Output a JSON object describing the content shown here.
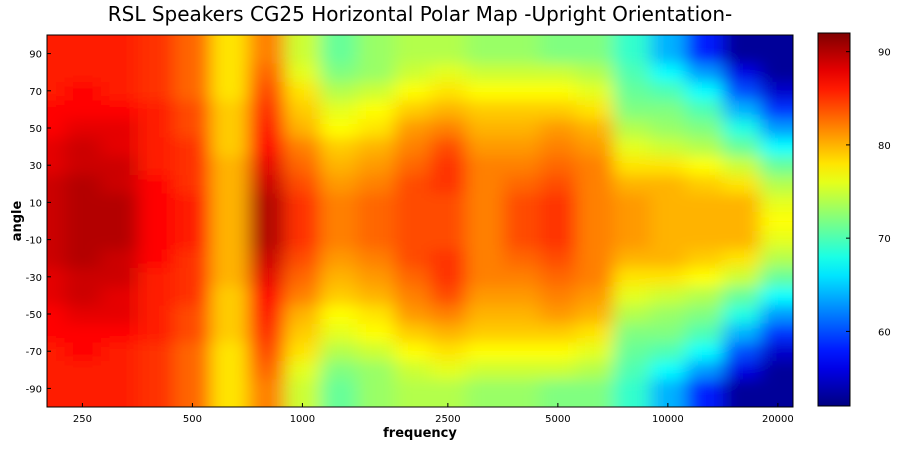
{
  "chart_data": {
    "type": "heatmap",
    "title": "RSL Speakers CG25 Horizontal Polar Map -Upright Orientation-",
    "xlabel": "frequency",
    "ylabel": "angle",
    "x_scale": "log",
    "xlim": [
      200,
      22000
    ],
    "ylim": [
      -100,
      100
    ],
    "x_ticks": [
      250,
      500,
      1000,
      2500,
      5000,
      10000,
      20000
    ],
    "y_ticks": [
      90,
      70,
      50,
      30,
      10,
      -10,
      -30,
      -50,
      -70,
      -90
    ],
    "colormap": "jet",
    "color_range": [
      52,
      92
    ],
    "colorbar_ticks": [
      90,
      80,
      70,
      60
    ],
    "frequencies": [
      200,
      250,
      315,
      400,
      500,
      630,
      800,
      1000,
      1250,
      1600,
      2000,
      2500,
      3150,
      4000,
      5000,
      6300,
      8000,
      10000,
      12500,
      16000,
      20000
    ],
    "angles": [
      -90,
      -80,
      -70,
      -60,
      -50,
      -40,
      -30,
      -20,
      -10,
      0,
      10,
      20,
      30,
      40,
      50,
      60,
      70,
      80,
      90
    ],
    "values_by_abs_angle_note_order": [
      0,
      10,
      20,
      30,
      40,
      50,
      60,
      70,
      80,
      90
    ],
    "values": [
      [
        89,
        89,
        89,
        88,
        88,
        87,
        87,
        86,
        86,
        86
      ],
      [
        90,
        90,
        90,
        89,
        89,
        88,
        87,
        87,
        86,
        86
      ],
      [
        90,
        90,
        89,
        89,
        88,
        88,
        87,
        86,
        86,
        86
      ],
      [
        87,
        87,
        87,
        86,
        86,
        86,
        86,
        85,
        85,
        85
      ],
      [
        86,
        86,
        85,
        85,
        85,
        84,
        84,
        83,
        83,
        83
      ],
      [
        80,
        80,
        80,
        80,
        79,
        79,
        79,
        78,
        78,
        78
      ],
      [
        90,
        90,
        89,
        88,
        87,
        86,
        85,
        84,
        83,
        82
      ],
      [
        85,
        85,
        84,
        83,
        82,
        80,
        79,
        78,
        76,
        75
      ],
      [
        82,
        82,
        81,
        80,
        79,
        77,
        76,
        74,
        72,
        71
      ],
      [
        83,
        83,
        82,
        81,
        80,
        78,
        77,
        75,
        73,
        73
      ],
      [
        84,
        84,
        84,
        83,
        82,
        81,
        79,
        77,
        75,
        74
      ],
      [
        84,
        84,
        85,
        85,
        84,
        82,
        80,
        78,
        76,
        74
      ],
      [
        82,
        82,
        82,
        82,
        81,
        80,
        79,
        77,
        75,
        73
      ],
      [
        84,
        84,
        83,
        82,
        81,
        80,
        79,
        77,
        75,
        73
      ],
      [
        85,
        85,
        84,
        83,
        82,
        81,
        79,
        77,
        75,
        72
      ],
      [
        82,
        82,
        82,
        82,
        81,
        80,
        78,
        76,
        74,
        72
      ],
      [
        81,
        81,
        80,
        78,
        76,
        74,
        72,
        71,
        70,
        69
      ],
      [
        80,
        80,
        80,
        78,
        75,
        73,
        72,
        70,
        67,
        64
      ],
      [
        80,
        80,
        79,
        77,
        74,
        72,
        70,
        67,
        63,
        58
      ],
      [
        80,
        80,
        78,
        75,
        71,
        68,
        64,
        60,
        56,
        53
      ],
      [
        77,
        76,
        74,
        71,
        67,
        63,
        59,
        55,
        53,
        53
      ]
    ]
  }
}
